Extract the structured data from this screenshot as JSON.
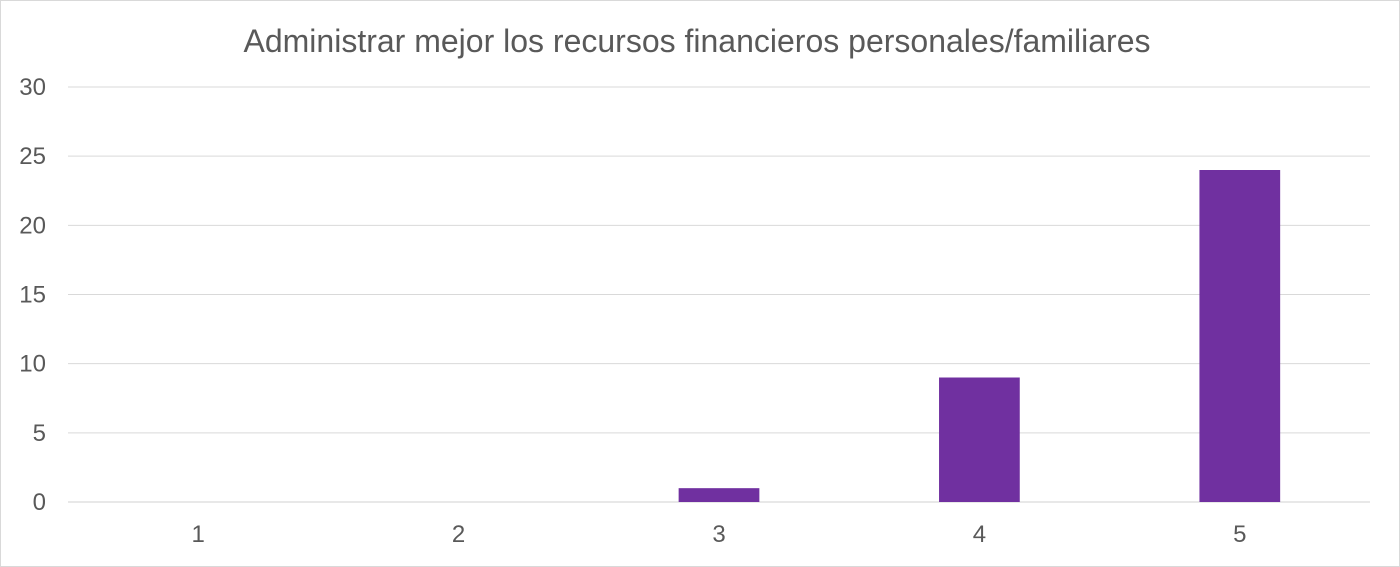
{
  "chart_data": {
    "type": "bar",
    "title": "Administrar mejor los recursos financieros personales/familiares",
    "categories": [
      "1",
      "2",
      "3",
      "4",
      "5"
    ],
    "series": [
      {
        "values": [
          0,
          0,
          1,
          9,
          24
        ]
      }
    ],
    "ylim": [
      0,
      30
    ],
    "yticks": [
      0,
      5,
      10,
      15,
      20,
      25,
      30
    ],
    "xlabel": "",
    "ylabel": "",
    "grid": true,
    "legend": "none",
    "bar_color": "#7030a0"
  }
}
